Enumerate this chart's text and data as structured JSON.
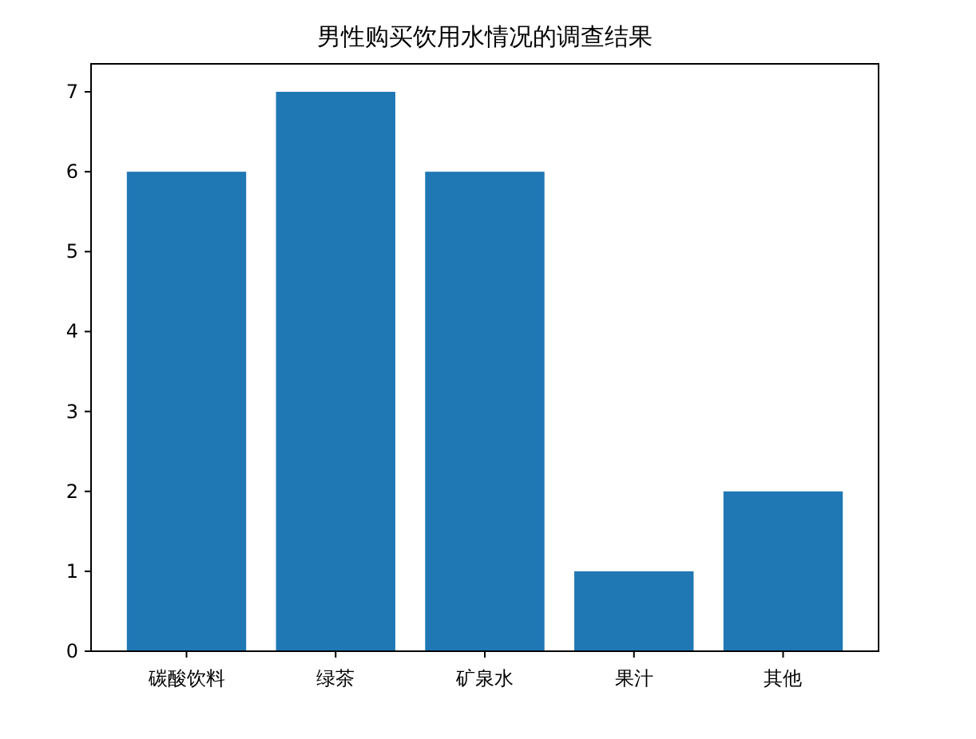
{
  "chart_data": {
    "type": "bar",
    "title": "男性购买饮用水情况的调查结果",
    "categories": [
      "碳酸饮料",
      "绿茶",
      "矿泉水",
      "果汁",
      "其他"
    ],
    "values": [
      6,
      7,
      6,
      1,
      2
    ],
    "color": "#1f77b4",
    "ylim": [
      0,
      7.35
    ],
    "yticks": [
      0,
      1,
      2,
      3,
      4,
      5,
      6,
      7
    ],
    "grid": false
  }
}
